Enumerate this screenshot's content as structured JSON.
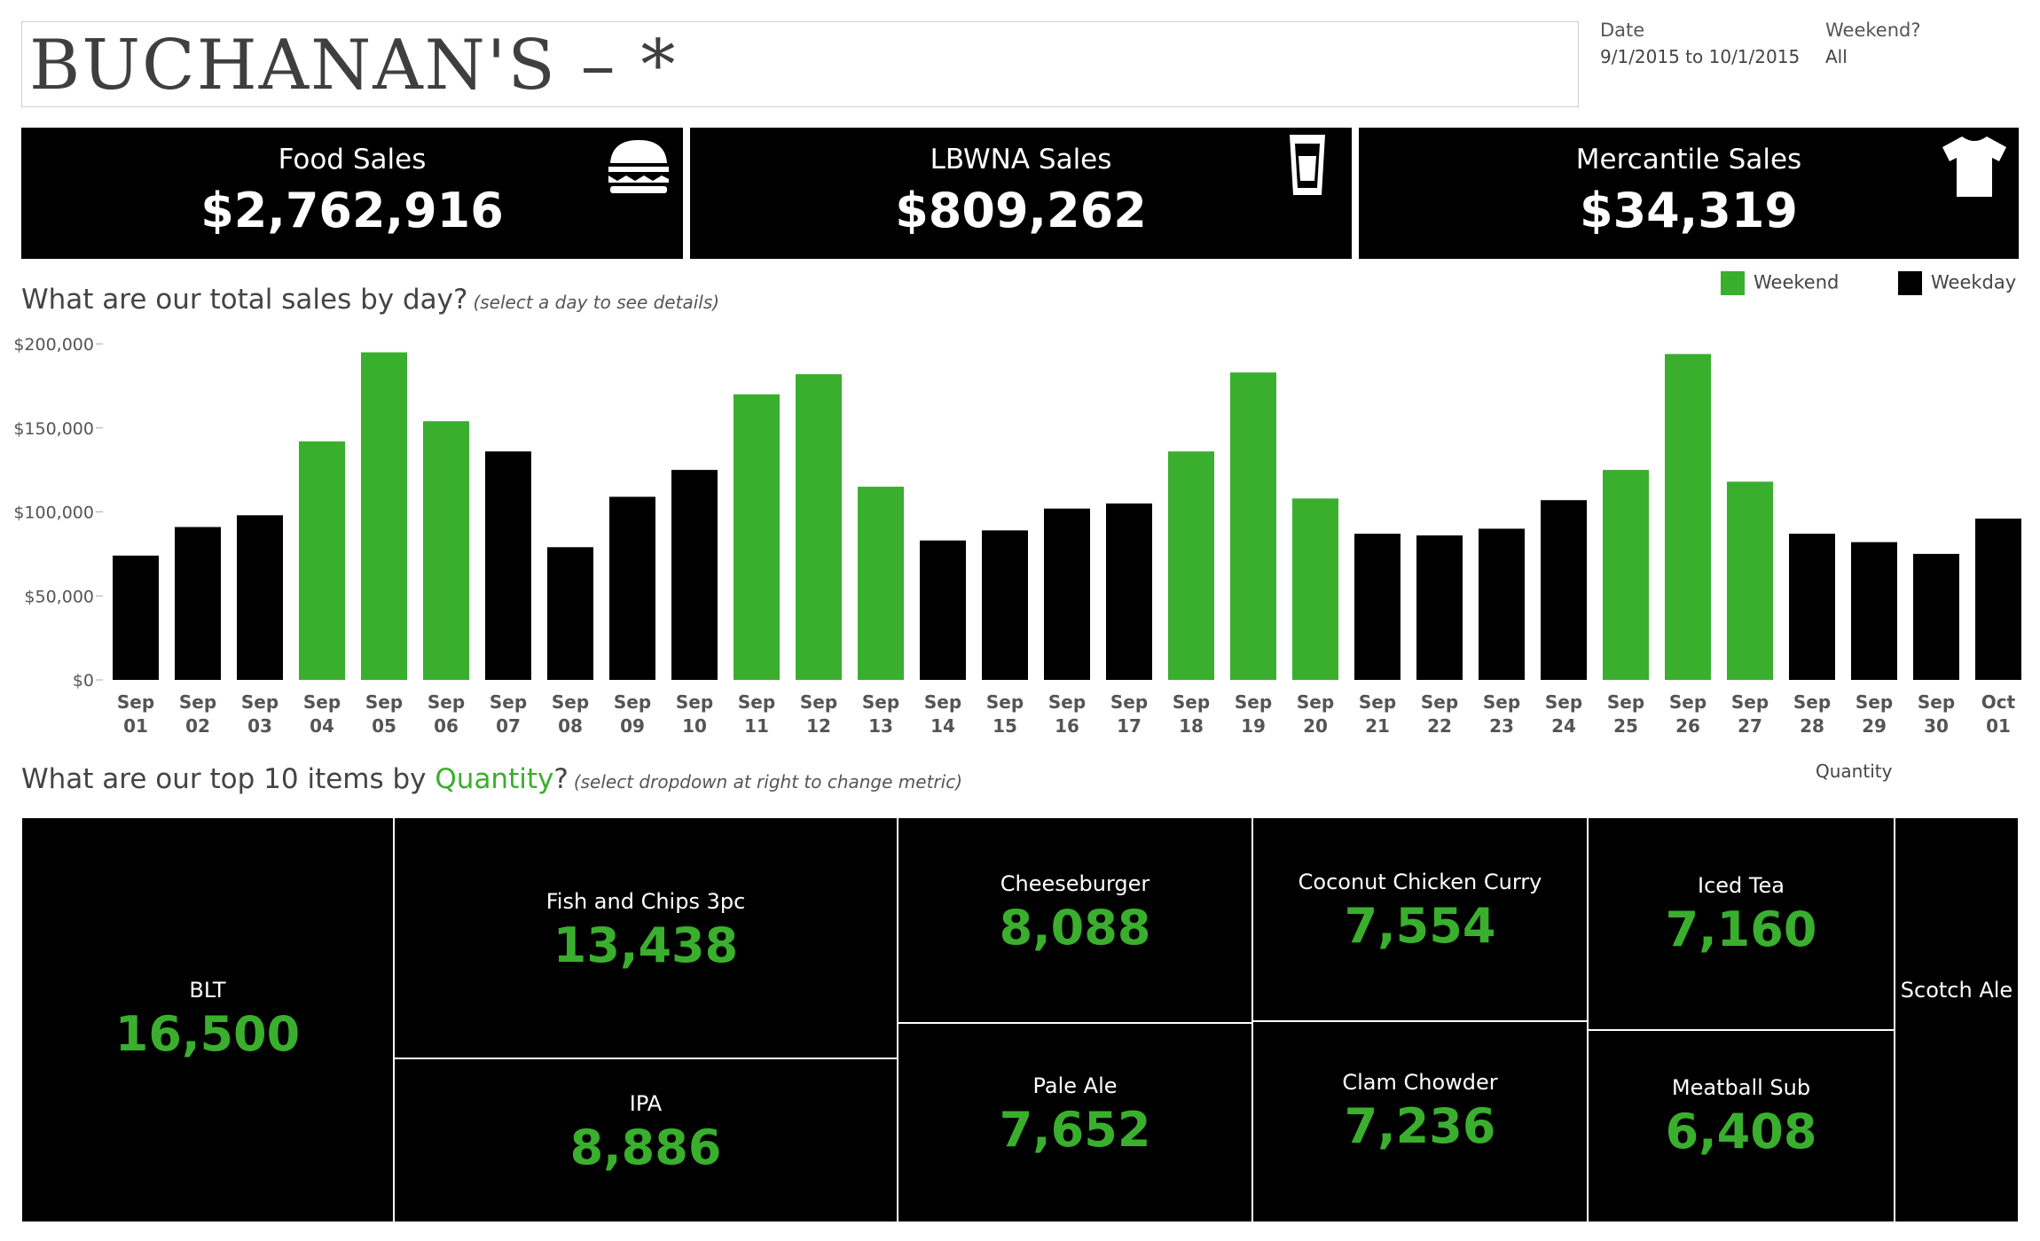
{
  "header": {
    "title": "BUCHANAN'S – *",
    "filters": [
      {
        "label": "Date",
        "value": "9/1/2015 to 10/1/2015"
      },
      {
        "label": "Weekend?",
        "value": "All"
      }
    ]
  },
  "kpis": [
    {
      "label": "Food Sales",
      "value": "$2,762,916",
      "icon": "burger-icon"
    },
    {
      "label": "LBWNA Sales",
      "value": "$809,262",
      "icon": "beer-glass-icon"
    },
    {
      "label": "Mercantile Sales",
      "value": "$34,319",
      "icon": "tshirt-icon"
    }
  ],
  "sales_section": {
    "title": "What are our total sales by day?",
    "hint": "(select a day to see details)"
  },
  "legend": {
    "weekend_label": "Weekend",
    "weekday_label": "Weekday"
  },
  "colors": {
    "weekend": "#3aaf2e",
    "weekday": "#000000",
    "accent": "#3aaf2e"
  },
  "top_section": {
    "prefix": "What are our top 10 items by ",
    "metric": "Quantity",
    "suffix": "?",
    "hint": "(select dropdown at right to change metric)",
    "selector_value": "Quantity"
  },
  "chart_data": [
    {
      "type": "bar",
      "title": "What are our total sales by day?",
      "xlabel": "",
      "ylabel": "",
      "ylim": [
        0,
        200000
      ],
      "yticks": [
        "$0",
        "$50,000",
        "$100,000",
        "$150,000",
        "$200,000"
      ],
      "ytick_values": [
        0,
        50000,
        100000,
        150000,
        200000
      ],
      "categories": [
        {
          "month": "Sep",
          "day": "01"
        },
        {
          "month": "Sep",
          "day": "02"
        },
        {
          "month": "Sep",
          "day": "03"
        },
        {
          "month": "Sep",
          "day": "04"
        },
        {
          "month": "Sep",
          "day": "05"
        },
        {
          "month": "Sep",
          "day": "06"
        },
        {
          "month": "Sep",
          "day": "07"
        },
        {
          "month": "Sep",
          "day": "08"
        },
        {
          "month": "Sep",
          "day": "09"
        },
        {
          "month": "Sep",
          "day": "10"
        },
        {
          "month": "Sep",
          "day": "11"
        },
        {
          "month": "Sep",
          "day": "12"
        },
        {
          "month": "Sep",
          "day": "13"
        },
        {
          "month": "Sep",
          "day": "14"
        },
        {
          "month": "Sep",
          "day": "15"
        },
        {
          "month": "Sep",
          "day": "16"
        },
        {
          "month": "Sep",
          "day": "17"
        },
        {
          "month": "Sep",
          "day": "18"
        },
        {
          "month": "Sep",
          "day": "19"
        },
        {
          "month": "Sep",
          "day": "20"
        },
        {
          "month": "Sep",
          "day": "21"
        },
        {
          "month": "Sep",
          "day": "22"
        },
        {
          "month": "Sep",
          "day": "23"
        },
        {
          "month": "Sep",
          "day": "24"
        },
        {
          "month": "Sep",
          "day": "25"
        },
        {
          "month": "Sep",
          "day": "26"
        },
        {
          "month": "Sep",
          "day": "27"
        },
        {
          "month": "Sep",
          "day": "28"
        },
        {
          "month": "Sep",
          "day": "29"
        },
        {
          "month": "Sep",
          "day": "30"
        },
        {
          "month": "Oct",
          "day": "01"
        }
      ],
      "values": [
        74000,
        91000,
        98000,
        142000,
        195000,
        154000,
        136000,
        79000,
        109000,
        125000,
        170000,
        182000,
        115000,
        83000,
        89000,
        102000,
        105000,
        136000,
        183000,
        108000,
        87000,
        86000,
        90000,
        107000,
        125000,
        194000,
        118000,
        87000,
        82000,
        75000,
        96000
      ],
      "weekend": [
        false,
        false,
        false,
        true,
        true,
        true,
        false,
        false,
        false,
        false,
        true,
        true,
        true,
        false,
        false,
        false,
        false,
        true,
        true,
        true,
        false,
        false,
        false,
        false,
        true,
        true,
        true,
        false,
        false,
        false,
        false
      ],
      "legend": [
        "Weekend",
        "Weekday"
      ],
      "legend_position": "top-right",
      "grid": false
    },
    {
      "type": "treemap",
      "title": "What are our top 10 items by Quantity?",
      "items": [
        {
          "name": "BLT",
          "value": 16500,
          "label": "16,500"
        },
        {
          "name": "Fish and Chips 3pc",
          "value": 13438,
          "label": "13,438"
        },
        {
          "name": "IPA",
          "value": 8886,
          "label": "8,886"
        },
        {
          "name": "Cheeseburger",
          "value": 8088,
          "label": "8,088"
        },
        {
          "name": "Pale Ale",
          "value": 7652,
          "label": "7,652"
        },
        {
          "name": "Coconut Chicken Curry",
          "value": 7554,
          "label": "7,554"
        },
        {
          "name": "Clam Chowder",
          "value": 7236,
          "label": "7,236"
        },
        {
          "name": "Iced Tea",
          "value": 7160,
          "label": "7,160"
        },
        {
          "name": "Meatball Sub",
          "value": 6408,
          "label": "6,408"
        },
        {
          "name": "Scotch Ale",
          "value": 5000,
          "label": ""
        }
      ]
    }
  ]
}
